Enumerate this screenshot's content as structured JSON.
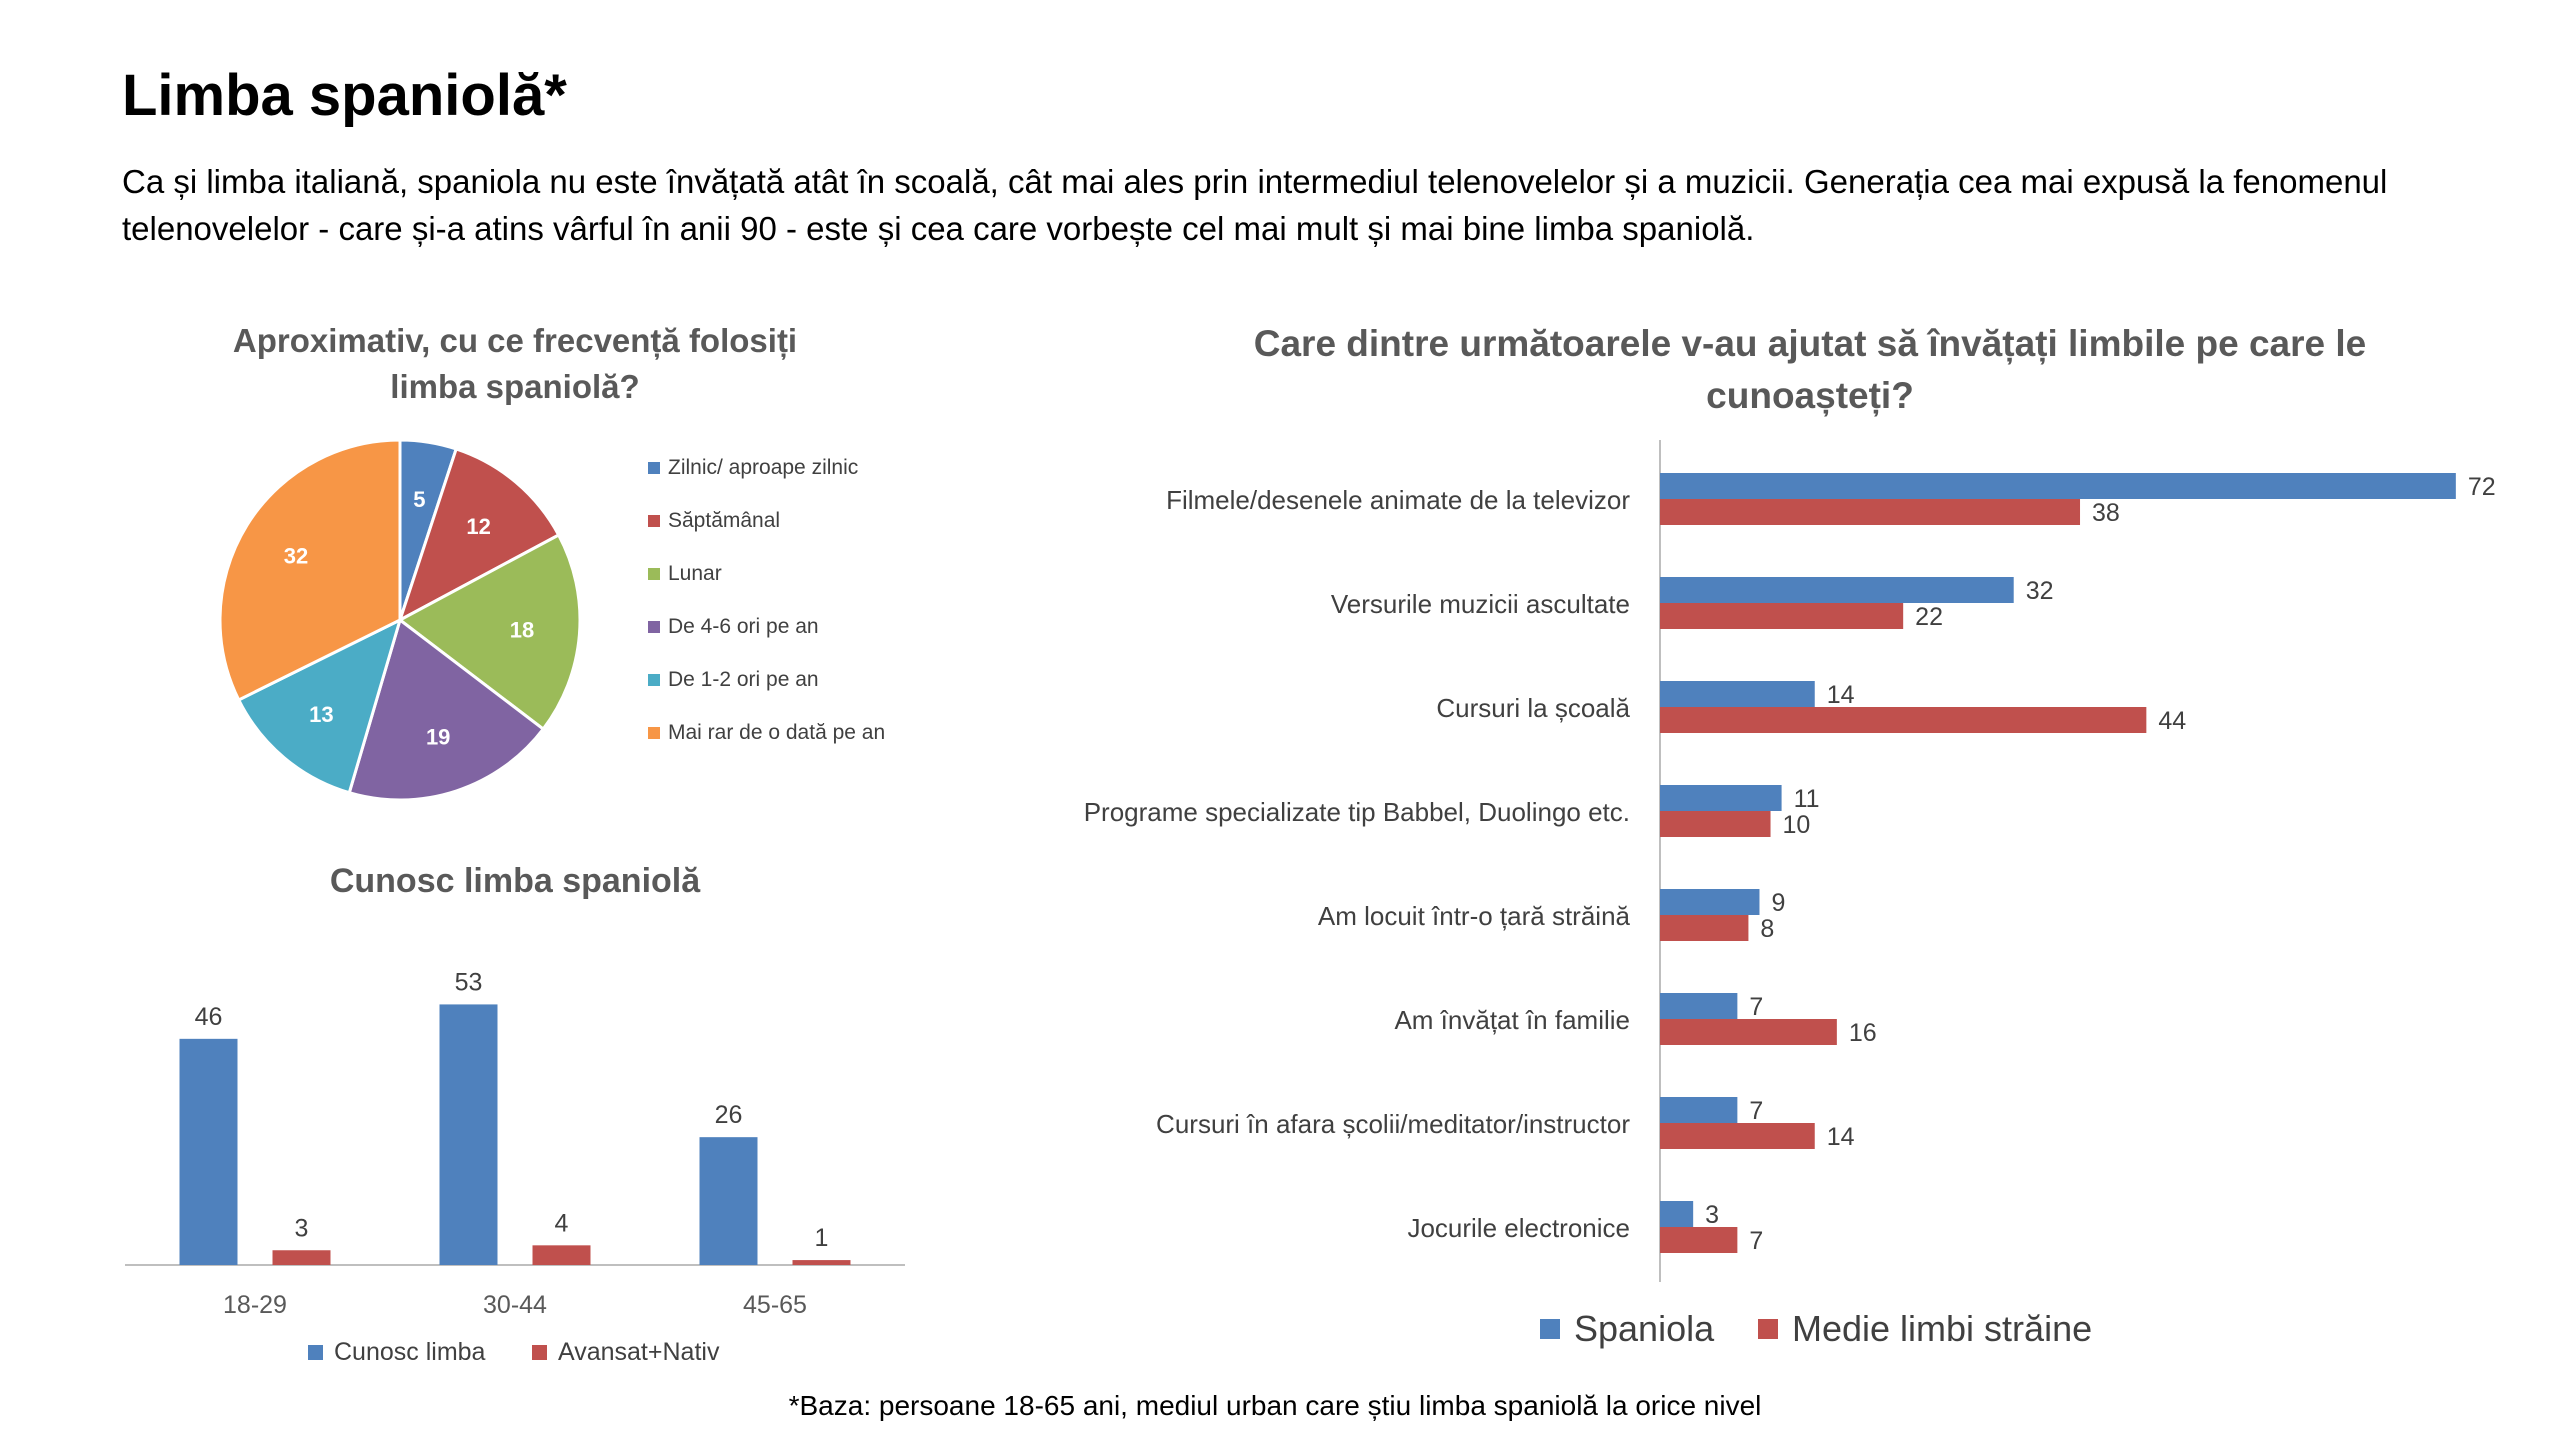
{
  "page": {
    "title": "Limba spaniolă*",
    "intro": "Ca și limba italiană, spaniola nu este învățată atât în scoală, cât mai ales prin intermediul telenovelelor și a muzicii. Generația cea mai expusă la fenomenul telenovelelor - care și-a atins vârful în anii 90 - este și cea care vorbește cel mai mult și mai bine limba spaniolă.",
    "footnote": "*Baza: persoane 18-65 ani, mediul urban care știu limba spaniolă la orice nivel"
  },
  "chart_data": [
    {
      "type": "pie",
      "title": "Aproximativ, cu ce frecvență folosiți limba spaniolă?",
      "title_lines": [
        "Aproximativ, cu ce frecvență folosiți",
        "limba spaniolă?"
      ],
      "categories": [
        "Zilnic/ aproape zilnic",
        "Săptămânal",
        "Lunar",
        "De 4-6 ori pe an",
        "De 1-2 ori pe an",
        "Mai rar de o dată pe an"
      ],
      "values": [
        5,
        12,
        18,
        19,
        13,
        32
      ],
      "colors": [
        "#4f81bd",
        "#c0504d",
        "#9bbb59",
        "#8064a2",
        "#4bacc6",
        "#f79646"
      ],
      "legend_position": "right"
    },
    {
      "type": "bar",
      "title": "Cunosc limba spaniolă",
      "categories": [
        "18-29",
        "30-44",
        "45-65"
      ],
      "series": [
        {
          "name": "Cunosc limba",
          "values": [
            46,
            53,
            26
          ],
          "color": "#4f81bd"
        },
        {
          "name": "Avansat+Nativ",
          "values": [
            3,
            4,
            1
          ],
          "color": "#c0504d"
        }
      ],
      "ylim": [
        0,
        60
      ],
      "grid": false,
      "legend_position": "bottom"
    },
    {
      "type": "bar",
      "orientation": "horizontal",
      "title": "Care dintre următoarele v-au ajutat să învățați limbile pe care le cunoașteți?",
      "title_lines": [
        "Care dintre următoarele v-au ajutat să învățați limbile pe care le",
        "cunoașteți?"
      ],
      "categories": [
        "Filmele/desenele animate de la televizor",
        "Versurile muzicii ascultate",
        "Cursuri la școală",
        "Programe specializate tip Babbel, Duolingo etc.",
        "Am locuit într-o țară străină",
        "Am învățat în familie",
        "Cursuri în afara școlii/meditator/instructor",
        "Jocurile electronice"
      ],
      "series": [
        {
          "name": "Spaniola",
          "values": [
            72,
            32,
            14,
            11,
            9,
            7,
            7,
            3
          ],
          "color": "#4f81bd"
        },
        {
          "name": "Medie limbi străine",
          "values": [
            38,
            22,
            44,
            10,
            8,
            16,
            14,
            7
          ],
          "color": "#c0504d"
        }
      ],
      "xlim": [
        0,
        75
      ],
      "grid": false,
      "legend_position": "bottom"
    }
  ]
}
